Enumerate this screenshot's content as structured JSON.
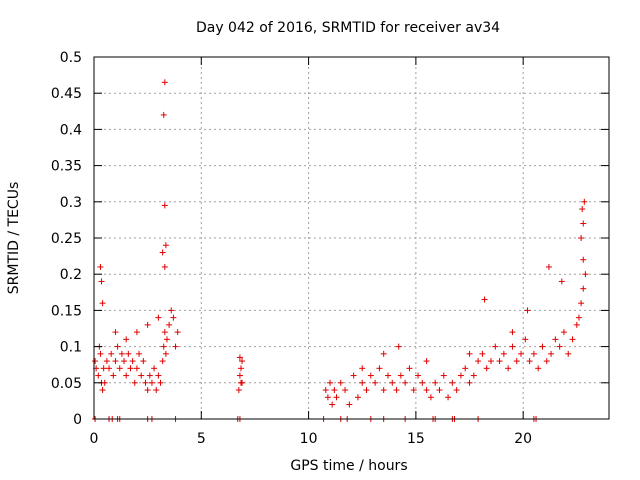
{
  "chart_data": {
    "type": "scatter",
    "title": "Day 042 of 2016, SRMTID for receiver av34",
    "xlabel": "GPS time / hours",
    "ylabel": "SRMTID / TECUs",
    "xlim": [
      0,
      24
    ],
    "ylim": [
      0,
      0.5
    ],
    "xticks": [
      0,
      5,
      10,
      15,
      20
    ],
    "xtick_labels": [
      "0",
      "5",
      "10",
      "15",
      "20"
    ],
    "yticks": [
      0,
      0.05,
      0.1,
      0.15,
      0.2,
      0.25,
      0.3,
      0.35,
      0.4,
      0.45,
      0.5
    ],
    "ytick_labels": [
      "0",
      "0.05",
      "0.1",
      "0.15",
      "0.2",
      "0.25",
      "0.3",
      "0.35",
      "0.4",
      "0.45",
      "0.5"
    ],
    "grid": true,
    "marker": "+",
    "series": [
      {
        "name": "SRMTID",
        "color": "#e00000",
        "x": [
          0.05,
          0.1,
          0.2,
          0.25,
          0.3,
          0.35,
          0.4,
          0.45,
          0.5,
          0.6,
          0.7,
          0.8,
          0.9,
          1.0,
          1.1,
          1.2,
          1.3,
          1.4,
          1.5,
          1.6,
          1.7,
          1.8,
          1.9,
          2.0,
          2.1,
          2.2,
          2.3,
          2.4,
          2.5,
          2.6,
          2.7,
          2.8,
          2.9,
          3.0,
          3.1,
          3.2,
          3.25,
          3.3,
          3.35,
          3.4,
          3.5,
          3.6,
          3.7,
          3.8,
          3.9,
          0.3,
          0.35,
          0.4,
          1.0,
          1.5,
          2.0,
          2.5,
          3.0,
          3.2,
          3.3,
          3.35,
          3.3,
          3.25,
          3.3,
          6.8,
          6.85,
          6.9,
          6.75,
          6.8,
          6.85,
          6.9,
          10.8,
          10.9,
          11.0,
          11.1,
          11.2,
          11.3,
          11.5,
          11.7,
          11.9,
          12.1,
          12.3,
          12.5,
          12.7,
          12.9,
          13.1,
          13.3,
          13.5,
          13.7,
          13.9,
          14.1,
          14.3,
          14.5,
          14.7,
          14.9,
          15.1,
          15.3,
          15.5,
          15.7,
          15.9,
          16.1,
          16.3,
          16.5,
          16.7,
          16.9,
          17.1,
          17.3,
          17.5,
          17.7,
          17.9,
          18.1,
          18.3,
          18.5,
          18.7,
          18.9,
          19.1,
          19.3,
          19.5,
          19.7,
          19.9,
          20.1,
          20.3,
          20.5,
          20.7,
          20.9,
          21.1,
          21.3,
          21.5,
          21.7,
          21.9,
          22.1,
          22.3,
          22.5,
          22.6,
          22.7,
          22.8,
          22.9,
          12.5,
          13.5,
          14.2,
          15.5,
          17.5,
          18.2,
          19.5,
          20.2,
          21.2,
          21.8,
          22.7,
          22.8,
          22.75,
          22.85,
          22.8,
          0.05,
          0.7,
          0.85,
          1.1,
          1.2,
          2.5,
          2.7,
          3.8,
          6.7,
          6.8,
          10.7,
          11.5,
          11.8,
          12.9,
          13.5,
          14.5,
          15.8,
          15.9,
          16.7,
          16.8,
          17.9,
          20.5,
          20.6
        ],
        "y": [
          0.08,
          0.07,
          0.06,
          0.1,
          0.09,
          0.05,
          0.04,
          0.07,
          0.05,
          0.08,
          0.07,
          0.09,
          0.06,
          0.08,
          0.1,
          0.07,
          0.09,
          0.08,
          0.06,
          0.09,
          0.07,
          0.08,
          0.05,
          0.07,
          0.09,
          0.06,
          0.08,
          0.05,
          0.04,
          0.06,
          0.05,
          0.07,
          0.04,
          0.06,
          0.05,
          0.08,
          0.1,
          0.12,
          0.09,
          0.11,
          0.13,
          0.15,
          0.14,
          0.1,
          0.12,
          0.21,
          0.19,
          0.16,
          0.12,
          0.11,
          0.12,
          0.13,
          0.14,
          0.23,
          0.21,
          0.24,
          0.295,
          0.42,
          0.465,
          0.085,
          0.07,
          0.05,
          0.04,
          0.06,
          0.05,
          0.08,
          0.04,
          0.03,
          0.05,
          0.02,
          0.04,
          0.03,
          0.05,
          0.04,
          0.02,
          0.06,
          0.03,
          0.05,
          0.04,
          0.06,
          0.05,
          0.07,
          0.04,
          0.06,
          0.05,
          0.04,
          0.06,
          0.05,
          0.07,
          0.04,
          0.06,
          0.05,
          0.04,
          0.03,
          0.05,
          0.04,
          0.06,
          0.03,
          0.05,
          0.04,
          0.06,
          0.07,
          0.05,
          0.06,
          0.08,
          0.09,
          0.07,
          0.08,
          0.1,
          0.08,
          0.09,
          0.07,
          0.1,
          0.08,
          0.09,
          0.11,
          0.08,
          0.09,
          0.07,
          0.1,
          0.08,
          0.09,
          0.11,
          0.1,
          0.12,
          0.09,
          0.11,
          0.13,
          0.14,
          0.16,
          0.18,
          0.2,
          0.07,
          0.09,
          0.1,
          0.08,
          0.09,
          0.165,
          0.12,
          0.15,
          0.21,
          0.19,
          0.25,
          0.22,
          0.29,
          0.3,
          0.27,
          0,
          0,
          0,
          0,
          0,
          0,
          0,
          0,
          0,
          0,
          0,
          0,
          0,
          0,
          0,
          0,
          0,
          0,
          0,
          0,
          0,
          0,
          0
        ]
      }
    ]
  }
}
